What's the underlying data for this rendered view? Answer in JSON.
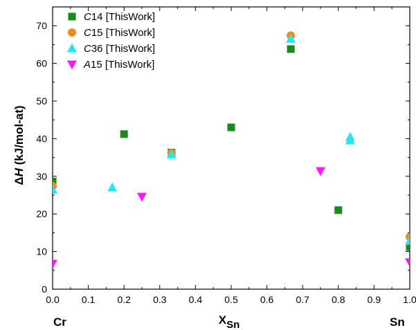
{
  "chart_data": {
    "type": "scatter",
    "xlabel": "X",
    "xlabel_sub": "Sn",
    "ylabel_prefix": "Δ",
    "ylabel_var": "H",
    "ylabel_suffix": " (kJ/mol-at)",
    "x_left_label": "Cr",
    "x_right_label": "Sn",
    "xlim": [
      0,
      1.0
    ],
    "ylim": [
      0,
      75
    ],
    "xticks": [
      "0.0",
      "0.1",
      "0.2",
      "0.3",
      "0.4",
      "0.5",
      "0.6",
      "0.7",
      "0.8",
      "0.9",
      "1.0"
    ],
    "yticks": [
      "0",
      "10",
      "20",
      "30",
      "40",
      "50",
      "60",
      "70"
    ],
    "grid": false,
    "legend_position": "top-left",
    "series": [
      {
        "name_italic": "C",
        "name_rest": "14 [ThisWork]",
        "marker": "square",
        "color": "#1a8a1a",
        "points": [
          {
            "x": 0.0,
            "y": 28.6
          },
          {
            "x": 0.2,
            "y": 41.2
          },
          {
            "x": 0.333,
            "y": 36.3
          },
          {
            "x": 0.5,
            "y": 43.0
          },
          {
            "x": 0.667,
            "y": 63.8
          },
          {
            "x": 0.8,
            "y": 21.0
          },
          {
            "x": 1.0,
            "y": 11.2
          }
        ]
      },
      {
        "name_italic": "C",
        "name_rest": "15 [ThisWork]",
        "marker": "circle",
        "color": "#f28a1e",
        "points": [
          {
            "x": 0.0,
            "y": 27.4
          },
          {
            "x": 0.333,
            "y": 36.2
          },
          {
            "x": 0.667,
            "y": 67.4
          },
          {
            "x": 1.0,
            "y": 13.9
          }
        ]
      },
      {
        "name_italic": "C",
        "name_rest": "36 [ThisWork]",
        "marker": "triangle-up",
        "color": "#26e6f2",
        "points": [
          {
            "x": 0.0,
            "y": 26.4
          },
          {
            "x": 0.167,
            "y": 27.0
          },
          {
            "x": 0.333,
            "y": 35.8
          },
          {
            "x": 0.667,
            "y": 66.5
          },
          {
            "x": 0.833,
            "y": 40.4
          },
          {
            "x": 0.833,
            "y": 39.5
          },
          {
            "x": 1.0,
            "y": 12.8
          }
        ]
      },
      {
        "name_italic": "A",
        "name_rest": "15 [ThisWork]",
        "marker": "triangle-down",
        "color": "#ff1aff",
        "points": [
          {
            "x": 0.0,
            "y": 6.8
          },
          {
            "x": 0.25,
            "y": 24.6
          },
          {
            "x": 0.75,
            "y": 31.4
          },
          {
            "x": 1.0,
            "y": 7.2
          }
        ]
      }
    ]
  }
}
